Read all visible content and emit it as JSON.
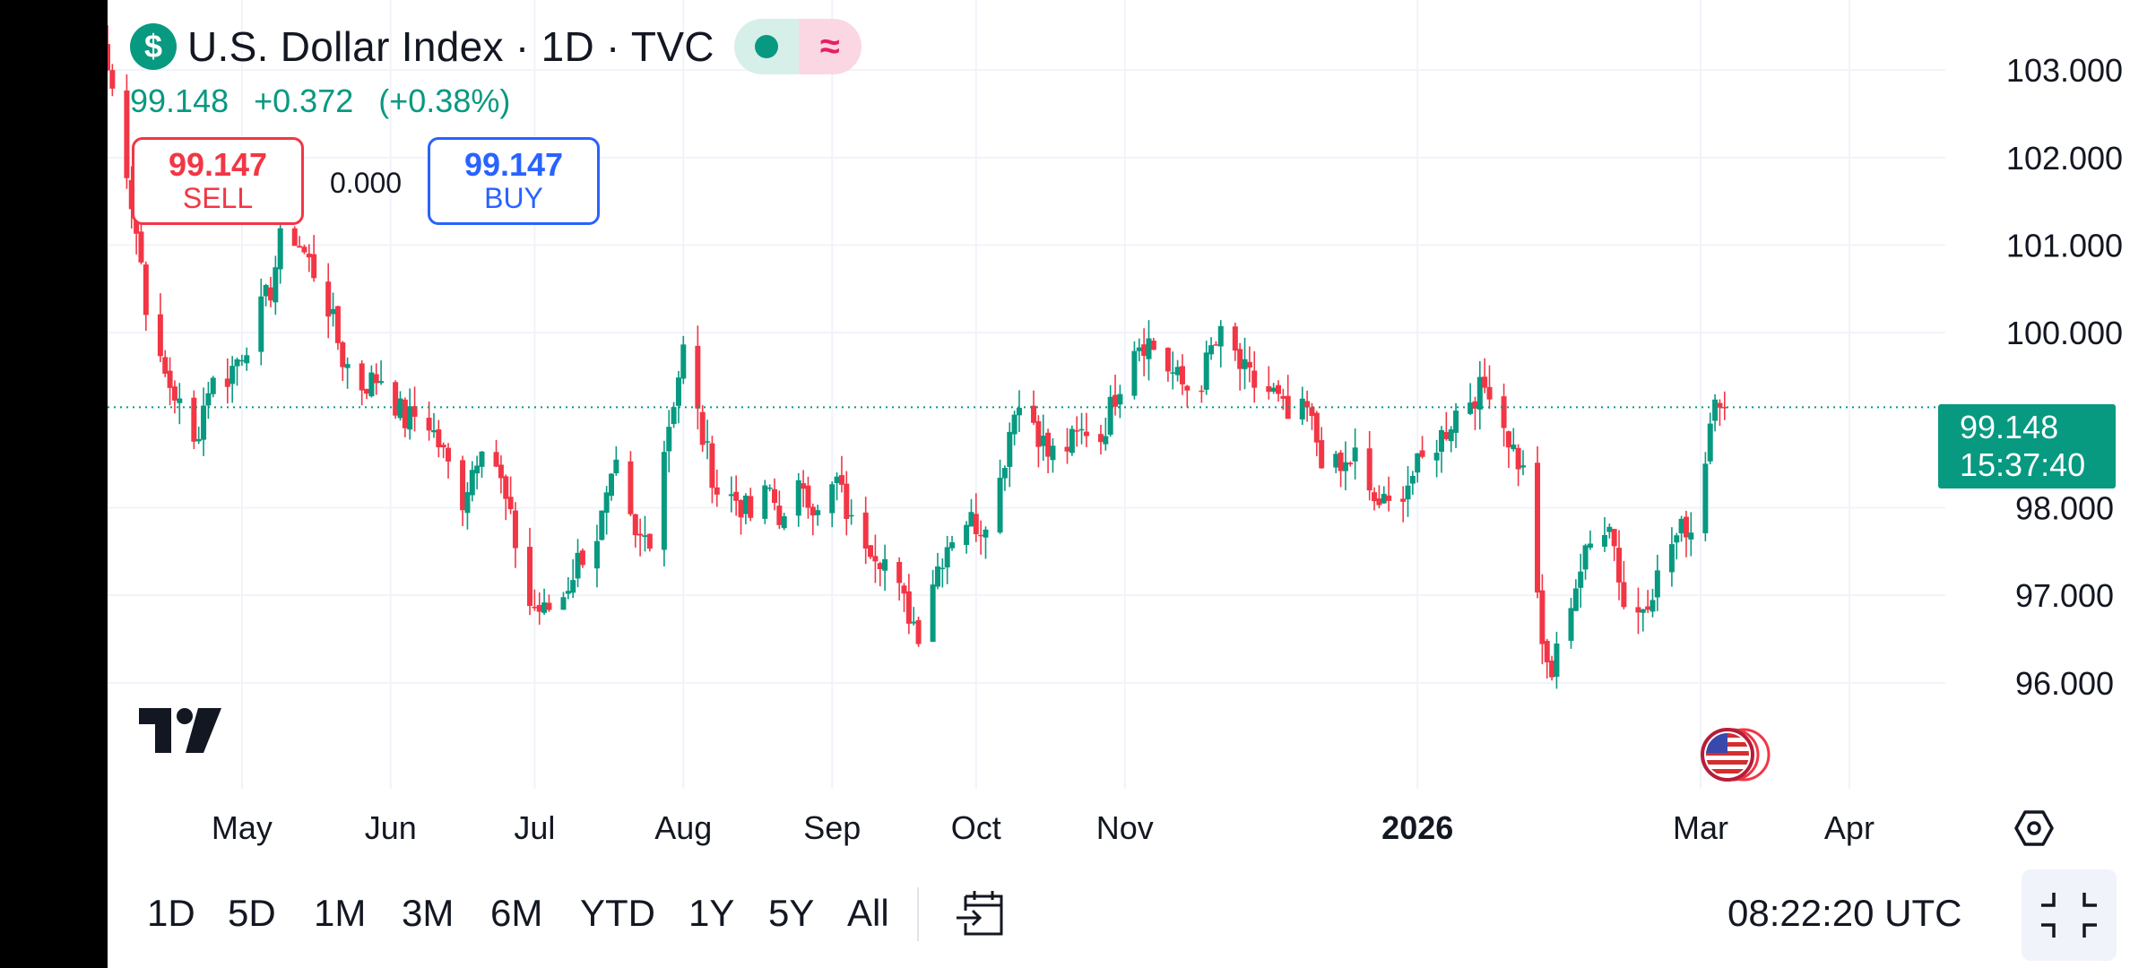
{
  "header": {
    "symbol_icon": "dollar-sign-icon",
    "title": "U.S. Dollar Index · 1D · TVC",
    "market_status_icon": "market-open-dot-icon",
    "data_status_icon": "delayed-data-wave-icon",
    "last_price": "99.148",
    "change": "+0.372",
    "change_pct": "(+0.38%)"
  },
  "trade": {
    "sell_price": "99.147",
    "sell_label": "SELL",
    "spread": "0.000",
    "buy_price": "99.147",
    "buy_label": "BUY"
  },
  "last_price_tag": {
    "price": "99.148",
    "countdown": "15:37:40"
  },
  "toolbar": {
    "ranges": [
      "1D",
      "5D",
      "1M",
      "3M",
      "6M",
      "YTD",
      "1Y",
      "5Y",
      "All"
    ],
    "goto_icon": "calendar-goto-icon",
    "clock": "08:22:20 UTC",
    "fullscreen_icon": "exit-fullscreen-icon",
    "settings_icon": "hexagon-settings-icon"
  },
  "colors": {
    "up": "#089981",
    "down": "#f23645",
    "buy": "#2962ff",
    "grid": "#f0f3fa"
  },
  "chart_data": {
    "type": "candlestick",
    "title": "U.S. Dollar Index · 1D · TVC",
    "xlabel": "",
    "ylabel": "",
    "y_ticks": [
      96,
      97,
      98,
      100,
      101,
      102,
      103
    ],
    "y_tick_labels": [
      "96.000",
      "97.000",
      "98.000",
      "100.000",
      "101.000",
      "102.000",
      "103.000"
    ],
    "ylim": [
      95.2,
      103.8
    ],
    "x_ticks": [
      "2025-05-01",
      "2025-06-01",
      "2025-07-01",
      "2025-08-01",
      "2025-09-01",
      "2025-10-01",
      "2025-11-01",
      "2026-01-01",
      "2026-03-01",
      "2026-04-01"
    ],
    "x_tick_labels": [
      "May",
      "Jun",
      "Jul",
      "Aug",
      "Sep",
      "Oct",
      "Nov",
      "2026",
      "Mar",
      "Apr"
    ],
    "xlim": [
      "2025-04-03",
      "2026-04-21"
    ],
    "last_close": 99.148,
    "grid": true,
    "close_path": [
      [
        "2025-04-03",
        103.0
      ],
      [
        "2025-04-06",
        102.3
      ],
      [
        "2025-04-08",
        101.5
      ],
      [
        "2025-04-10",
        100.8
      ],
      [
        "2025-04-12",
        99.9
      ],
      [
        "2025-04-14",
        99.6
      ],
      [
        "2025-04-17",
        99.3
      ],
      [
        "2025-04-21",
        98.7
      ],
      [
        "2025-04-24",
        99.4
      ],
      [
        "2025-04-28",
        99.5
      ],
      [
        "2025-05-02",
        99.9
      ],
      [
        "2025-05-07",
        100.5
      ],
      [
        "2025-05-10",
        101.3
      ],
      [
        "2025-05-14",
        100.9
      ],
      [
        "2025-05-18",
        100.5
      ],
      [
        "2025-05-22",
        99.7
      ],
      [
        "2025-05-26",
        99.4
      ],
      [
        "2025-05-30",
        99.5
      ],
      [
        "2025-06-04",
        99.0
      ],
      [
        "2025-06-08",
        99.1
      ],
      [
        "2025-06-12",
        98.6
      ],
      [
        "2025-06-16",
        98.1
      ],
      [
        "2025-06-20",
        98.8
      ],
      [
        "2025-06-23",
        98.5
      ],
      [
        "2025-06-27",
        97.6
      ],
      [
        "2025-06-30",
        96.9
      ],
      [
        "2025-07-03",
        96.8
      ],
      [
        "2025-07-07",
        97.0
      ],
      [
        "2025-07-10",
        97.4
      ],
      [
        "2025-07-14",
        97.7
      ],
      [
        "2025-07-18",
        98.4
      ],
      [
        "2025-07-22",
        97.6
      ],
      [
        "2025-07-25",
        97.7
      ],
      [
        "2025-07-28",
        98.7
      ],
      [
        "2025-08-01",
        99.8
      ],
      [
        "2025-08-05",
        98.8
      ],
      [
        "2025-08-08",
        98.2
      ],
      [
        "2025-08-12",
        98.1
      ],
      [
        "2025-08-15",
        97.9
      ],
      [
        "2025-08-19",
        98.2
      ],
      [
        "2025-08-22",
        97.8
      ],
      [
        "2025-08-26",
        98.3
      ],
      [
        "2025-08-29",
        97.9
      ],
      [
        "2025-09-02",
        98.3
      ],
      [
        "2025-09-05",
        97.8
      ],
      [
        "2025-09-09",
        97.6
      ],
      [
        "2025-09-12",
        97.4
      ],
      [
        "2025-09-16",
        96.9
      ],
      [
        "2025-09-19",
        96.6
      ],
      [
        "2025-09-22",
        97.2
      ],
      [
        "2025-09-25",
        97.6
      ],
      [
        "2025-09-28",
        97.9
      ],
      [
        "2025-10-02",
        97.8
      ],
      [
        "2025-10-06",
        98.3
      ],
      [
        "2025-10-09",
        99.2
      ],
      [
        "2025-10-13",
        99.0
      ],
      [
        "2025-10-16",
        98.6
      ],
      [
        "2025-10-20",
        98.7
      ],
      [
        "2025-10-24",
        98.9
      ],
      [
        "2025-10-27",
        98.8
      ],
      [
        "2025-10-30",
        99.3
      ],
      [
        "2025-11-03",
        99.9
      ],
      [
        "2025-11-06",
        99.9
      ],
      [
        "2025-11-10",
        99.6
      ],
      [
        "2025-11-13",
        99.4
      ],
      [
        "2025-11-16",
        99.3
      ],
      [
        "2025-11-19",
        99.8
      ],
      [
        "2025-11-22",
        100.0
      ],
      [
        "2025-11-25",
        99.6
      ],
      [
        "2025-11-28",
        99.4
      ],
      [
        "2025-12-02",
        99.3
      ],
      [
        "2025-12-05",
        99.0
      ],
      [
        "2025-12-09",
        99.1
      ],
      [
        "2025-12-12",
        98.6
      ],
      [
        "2025-12-16",
        98.4
      ],
      [
        "2025-12-19",
        98.6
      ],
      [
        "2025-12-22",
        98.1
      ],
      [
        "2025-12-26",
        98.0
      ],
      [
        "2025-12-30",
        98.3
      ],
      [
        "2026-01-03",
        98.6
      ],
      [
        "2026-01-07",
        98.9
      ],
      [
        "2026-01-10",
        99.2
      ],
      [
        "2026-01-13",
        99.3
      ],
      [
        "2026-01-16",
        99.4
      ],
      [
        "2026-01-20",
        98.8
      ],
      [
        "2026-01-23",
        98.4
      ],
      [
        "2026-01-25",
        97.9
      ],
      [
        "2026-01-27",
        96.3
      ],
      [
        "2026-01-29",
        96.1
      ],
      [
        "2026-02-01",
        96.8
      ],
      [
        "2026-02-04",
        97.3
      ],
      [
        "2026-02-07",
        97.7
      ],
      [
        "2026-02-10",
        97.9
      ],
      [
        "2026-02-13",
        96.9
      ],
      [
        "2026-02-16",
        96.8
      ],
      [
        "2026-02-20",
        97.2
      ],
      [
        "2026-02-23",
        97.6
      ],
      [
        "2026-02-26",
        97.8
      ],
      [
        "2026-02-28",
        97.7
      ],
      [
        "2026-03-02",
        98.6
      ],
      [
        "2026-03-04",
        99.4
      ],
      [
        "2026-03-06",
        99.148
      ]
    ]
  }
}
